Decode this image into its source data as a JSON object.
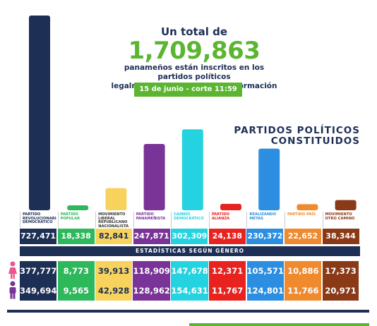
{
  "headline": {
    "pre": "Un total de",
    "total": "1,709,863",
    "desc_line1": "panameños están inscritos en los partidos políticos",
    "desc_line2": "legalmente constituidos y en formación",
    "date": "15 de junio - corte 11:59 p.m."
  },
  "section_title_line1": "PARTIDOS POLÍTICOS",
  "section_title_line2": "CONSTITUIDOS",
  "gender_title": "ESTADÍSTICAS SEGÚN GÉNERO",
  "icons": {
    "female": "woman-icon",
    "male": "man-icon"
  },
  "chart_data": {
    "type": "bar",
    "categories": [
      "PARTIDO REVOLUCIONARIO DEMOCRÁTICO",
      "PARTIDO POPULAR",
      "MOVIMIENTO LIBERAL REPUBLICANO NACIONALISTA",
      "PARTIDO PANAMEÑISTA",
      "CAMBIO DEMOCRÁTICO",
      "PARTIDO ALIANZA",
      "REALIZANDO METAS",
      "PARTIDO PAÍS",
      "MOVIMIENTO OTRO CAMINO"
    ],
    "values": [
      727471,
      18338,
      82841,
      247871,
      302309,
      24138,
      230372,
      22652,
      38344
    ],
    "labels": [
      "727,471",
      "18,338",
      "82,841",
      "247,871",
      "302,309",
      "24,138",
      "230,372",
      "22,652",
      "38,344"
    ],
    "colors": [
      "#1d2f55",
      "#2eb85c",
      "#f7d35e",
      "#7a3397",
      "#25d3e0",
      "#e8231f",
      "#2c8ee0",
      "#f08a2f",
      "#8a3a16"
    ],
    "female": [
      "377,777",
      "8,773",
      "39,913",
      "118,909",
      "147,678",
      "12,371",
      "105,571",
      "10,886",
      "17,373"
    ],
    "male": [
      "349,694",
      "9,565",
      "42,928",
      "128,962",
      "154,631",
      "11,767",
      "124,801",
      "11,766",
      "20,971"
    ],
    "ylim": [
      0,
      727471
    ]
  }
}
